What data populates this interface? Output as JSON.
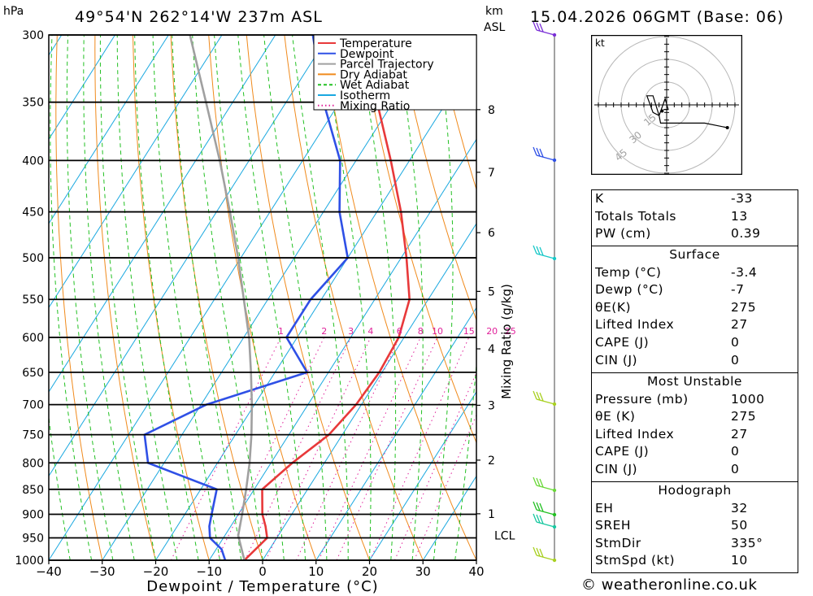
{
  "header": {
    "location": "49°54'N  262°14'W  237m  ASL",
    "datetime": "15.04.2026  06GMT  (Base: 06)",
    "unit_hpa": "hPa",
    "unit_km": "km",
    "unit_asl": "ASL"
  },
  "chart_data": {
    "type": "line",
    "xlabel": "Dewpoint / Temperature (°C)",
    "ylabel": "hPa",
    "y2label": "Mixing Ratio (g/kg)",
    "xlim": [
      -40,
      40
    ],
    "ylim": [
      1000,
      300
    ],
    "x_ticks": [
      "-40",
      "-30",
      "-20",
      "-10",
      "0",
      "10",
      "20",
      "30",
      "40"
    ],
    "pressure_ticks": [
      "300",
      "350",
      "400",
      "450",
      "500",
      "550",
      "600",
      "650",
      "700",
      "750",
      "800",
      "850",
      "900",
      "950",
      "1000"
    ],
    "km_ticks": [
      {
        "label": "8",
        "pressure": 356
      },
      {
        "label": "7",
        "pressure": 411
      },
      {
        "label": "6",
        "pressure": 472
      },
      {
        "label": "5",
        "pressure": 540
      },
      {
        "label": "4",
        "pressure": 616
      },
      {
        "label": "3",
        "pressure": 701
      },
      {
        "label": "2",
        "pressure": 795
      },
      {
        "label": "1",
        "pressure": 899
      }
    ],
    "lcl": {
      "label": "LCL",
      "pressure": 945
    },
    "mixing_ratio_labels": [
      "1",
      "2",
      "3",
      "4",
      "6",
      "8",
      "10",
      "15",
      "20",
      "25"
    ],
    "legend": {
      "position": "top-right",
      "entries": [
        {
          "label": "Temperature",
          "color": "#e8393a",
          "style": "solid"
        },
        {
          "label": "Dewpoint",
          "color": "#2f50e6",
          "style": "solid"
        },
        {
          "label": "Parcel Trajectory",
          "color": "#a0a0a0",
          "style": "solid"
        },
        {
          "label": "Dry Adiabat",
          "color": "#f08a1c",
          "style": "solid"
        },
        {
          "label": "Wet Adiabat",
          "color": "#22c022",
          "style": "dashed"
        },
        {
          "label": "Isotherm",
          "color": "#1aa8e0",
          "style": "solid"
        },
        {
          "label": "Mixing Ratio",
          "color": "#e0209a",
          "style": "dotted"
        }
      ]
    },
    "series": [
      {
        "name": "Temperature",
        "color": "#e8393a",
        "points": [
          [
            1000,
            -3.4
          ],
          [
            950,
            -1.8
          ],
          [
            925,
            -3.5
          ],
          [
            900,
            -5.5
          ],
          [
            850,
            -8.5
          ],
          [
            800,
            -6
          ],
          [
            750,
            -2.5
          ],
          [
            700,
            -1
          ],
          [
            650,
            -0.5
          ],
          [
            600,
            -1
          ],
          [
            550,
            -3.5
          ],
          [
            500,
            -9
          ],
          [
            450,
            -15.5
          ],
          [
            400,
            -23.5
          ],
          [
            350,
            -33
          ],
          [
            300,
            -43
          ]
        ]
      },
      {
        "name": "Dewpoint",
        "color": "#2f50e6",
        "points": [
          [
            1000,
            -7
          ],
          [
            975,
            -9
          ],
          [
            950,
            -12.5
          ],
          [
            925,
            -14
          ],
          [
            900,
            -15
          ],
          [
            850,
            -17
          ],
          [
            800,
            -33
          ],
          [
            750,
            -37
          ],
          [
            700,
            -29
          ],
          [
            650,
            -14
          ],
          [
            600,
            -22
          ],
          [
            550,
            -22
          ],
          [
            500,
            -20
          ],
          [
            450,
            -27
          ],
          [
            400,
            -33
          ],
          [
            350,
            -43
          ],
          [
            300,
            -53
          ]
        ]
      },
      {
        "name": "Parcel Trajectory",
        "color": "#a0a0a0",
        "points": [
          [
            1000,
            -3.4
          ],
          [
            945,
            -7.5
          ],
          [
            900,
            -9.3
          ],
          [
            850,
            -11.5
          ],
          [
            800,
            -14
          ],
          [
            750,
            -17
          ],
          [
            700,
            -20.5
          ],
          [
            650,
            -24.5
          ],
          [
            600,
            -29
          ],
          [
            550,
            -34.5
          ],
          [
            500,
            -40.5
          ],
          [
            450,
            -47.5
          ],
          [
            400,
            -55.5
          ],
          [
            350,
            -65
          ],
          [
            300,
            -76
          ]
        ]
      }
    ]
  },
  "hodograph": {
    "unit": "kt",
    "ring_labels": [
      "15",
      "30",
      "45"
    ],
    "points_kt": [
      [
        -2,
        -3
      ],
      [
        1,
        -3
      ],
      [
        -1,
        4
      ],
      [
        -5,
        -7
      ],
      [
        -9,
        -5
      ],
      [
        -13,
        6
      ],
      [
        -9,
        6
      ],
      [
        -5,
        -7
      ],
      [
        -4,
        -12
      ],
      [
        25,
        -12
      ],
      [
        40,
        -15
      ]
    ]
  },
  "indices": {
    "k_label": "K",
    "k_value": "-33",
    "tt_label": "Totals Totals",
    "tt_value": "13",
    "pw_label": "PW (cm)",
    "pw_value": "0.39"
  },
  "surface": {
    "title": "Surface",
    "rows": [
      {
        "label": "Temp (°C)",
        "value": "-3.4"
      },
      {
        "label": "Dewp (°C)",
        "value": "-7"
      },
      {
        "label": "θE(K)",
        "value": "275"
      },
      {
        "label": "Lifted Index",
        "value": "27"
      },
      {
        "label": "CAPE (J)",
        "value": "0"
      },
      {
        "label": "CIN (J)",
        "value": "0"
      }
    ]
  },
  "most_unstable": {
    "title": "Most Unstable",
    "rows": [
      {
        "label": "Pressure (mb)",
        "value": "1000"
      },
      {
        "label": "θE (K)",
        "value": "275"
      },
      {
        "label": "Lifted Index",
        "value": "27"
      },
      {
        "label": "CAPE (J)",
        "value": "0"
      },
      {
        "label": "CIN (J)",
        "value": "0"
      }
    ]
  },
  "hodograph_indices": {
    "title": "Hodograph",
    "rows": [
      {
        "label": "EH",
        "value": "32"
      },
      {
        "label": "SREH",
        "value": "50"
      },
      {
        "label": "StmDir",
        "value": "335°"
      },
      {
        "label": "StmSpd (kt)",
        "value": "10"
      }
    ]
  },
  "footer": {
    "copyright": "© weatheronline.co.uk"
  }
}
